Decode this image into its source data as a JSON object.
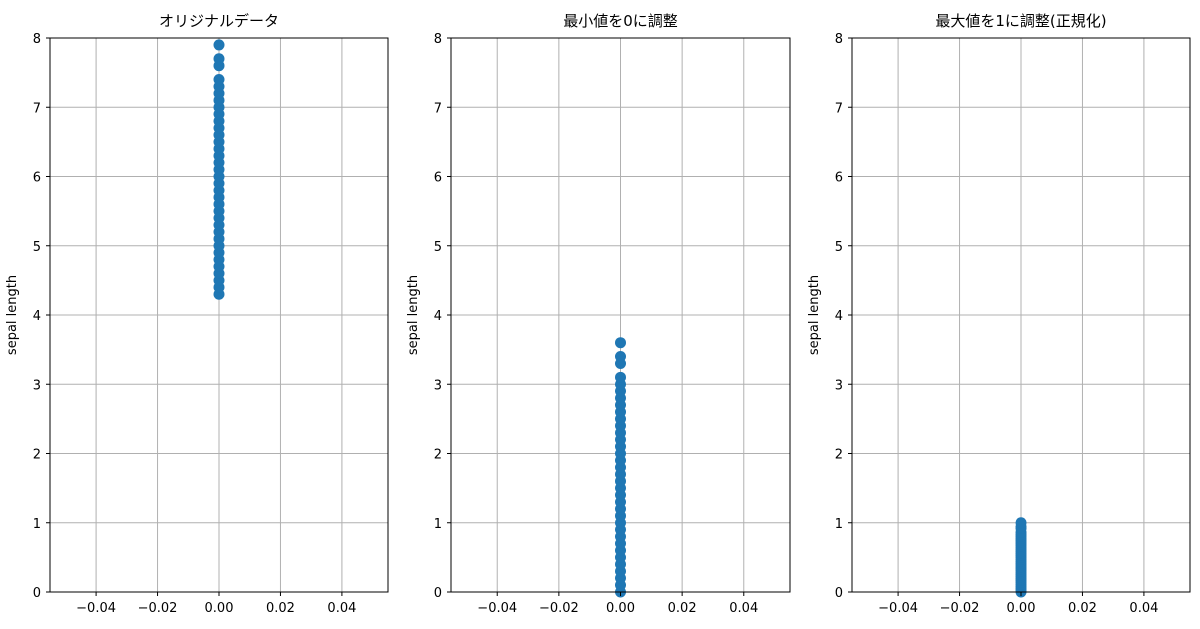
{
  "chart_data": [
    {
      "type": "scatter",
      "title": "オリジナルデータ",
      "xlabel": "",
      "ylabel": "sepal length",
      "xlim": [
        -0.055,
        0.055
      ],
      "ylim": [
        0,
        8
      ],
      "xticks": [
        "−0.04",
        "−0.02",
        "0.00",
        "0.02",
        "0.04"
      ],
      "xtick_values": [
        -0.04,
        -0.02,
        0.0,
        0.02,
        0.04
      ],
      "yticks": [
        "0",
        "1",
        "2",
        "3",
        "4",
        "5",
        "6",
        "7",
        "8"
      ],
      "ytick_values": [
        0,
        1,
        2,
        3,
        4,
        5,
        6,
        7,
        8
      ],
      "grid": true,
      "marker_color": "#1f77b4",
      "x": [
        0,
        0,
        0,
        0,
        0,
        0,
        0,
        0,
        0,
        0,
        0,
        0,
        0,
        0,
        0,
        0,
        0,
        0,
        0,
        0,
        0,
        0,
        0,
        0,
        0,
        0,
        0,
        0,
        0,
        0,
        0,
        0,
        0,
        0,
        0
      ],
      "y": [
        4.3,
        4.4,
        4.5,
        4.6,
        4.7,
        4.8,
        4.9,
        5.0,
        5.1,
        5.2,
        5.3,
        5.4,
        5.5,
        5.6,
        5.7,
        5.8,
        5.9,
        6.0,
        6.1,
        6.2,
        6.3,
        6.4,
        6.5,
        6.6,
        6.7,
        6.8,
        6.9,
        7.0,
        7.1,
        7.2,
        7.3,
        7.4,
        7.6,
        7.7,
        7.9
      ]
    },
    {
      "type": "scatter",
      "title": "最小値を0に調整",
      "xlabel": "",
      "ylabel": "sepal length",
      "xlim": [
        -0.055,
        0.055
      ],
      "ylim": [
        0,
        8
      ],
      "xticks": [
        "−0.04",
        "−0.02",
        "0.00",
        "0.02",
        "0.04"
      ],
      "xtick_values": [
        -0.04,
        -0.02,
        0.0,
        0.02,
        0.04
      ],
      "yticks": [
        "0",
        "1",
        "2",
        "3",
        "4",
        "5",
        "6",
        "7",
        "8"
      ],
      "ytick_values": [
        0,
        1,
        2,
        3,
        4,
        5,
        6,
        7,
        8
      ],
      "grid": true,
      "marker_color": "#1f77b4",
      "x": [
        0,
        0,
        0,
        0,
        0,
        0,
        0,
        0,
        0,
        0,
        0,
        0,
        0,
        0,
        0,
        0,
        0,
        0,
        0,
        0,
        0,
        0,
        0,
        0,
        0,
        0,
        0,
        0,
        0,
        0,
        0,
        0,
        0,
        0,
        0
      ],
      "y": [
        0.0,
        0.1,
        0.2,
        0.3,
        0.4,
        0.5,
        0.6,
        0.7,
        0.8,
        0.9,
        1.0,
        1.1,
        1.2,
        1.3,
        1.4,
        1.5,
        1.6,
        1.7,
        1.8,
        1.9,
        2.0,
        2.1,
        2.2,
        2.3,
        2.4,
        2.5,
        2.6,
        2.7,
        2.8,
        2.9,
        3.0,
        3.1,
        3.3,
        3.4,
        3.6
      ]
    },
    {
      "type": "scatter",
      "title": "最大値を1に調整(正規化)",
      "xlabel": "",
      "ylabel": "sepal length",
      "xlim": [
        -0.055,
        0.055
      ],
      "ylim": [
        0,
        8
      ],
      "xticks": [
        "−0.04",
        "−0.02",
        "0.00",
        "0.02",
        "0.04"
      ],
      "xtick_values": [
        -0.04,
        -0.02,
        0.0,
        0.02,
        0.04
      ],
      "yticks": [
        "0",
        "1",
        "2",
        "3",
        "4",
        "5",
        "6",
        "7",
        "8"
      ],
      "ytick_values": [
        0,
        1,
        2,
        3,
        4,
        5,
        6,
        7,
        8
      ],
      "grid": true,
      "marker_color": "#1f77b4",
      "x": [
        0,
        0,
        0,
        0,
        0,
        0,
        0,
        0,
        0,
        0,
        0,
        0,
        0,
        0,
        0,
        0,
        0,
        0,
        0,
        0,
        0,
        0,
        0,
        0,
        0,
        0,
        0,
        0,
        0,
        0,
        0,
        0,
        0,
        0,
        0
      ],
      "y": [
        0.0,
        0.028,
        0.056,
        0.083,
        0.111,
        0.139,
        0.167,
        0.194,
        0.222,
        0.25,
        0.278,
        0.306,
        0.333,
        0.361,
        0.389,
        0.417,
        0.444,
        0.472,
        0.5,
        0.528,
        0.556,
        0.583,
        0.611,
        0.639,
        0.667,
        0.694,
        0.722,
        0.75,
        0.778,
        0.806,
        0.833,
        0.861,
        0.917,
        0.944,
        1.0
      ]
    }
  ]
}
